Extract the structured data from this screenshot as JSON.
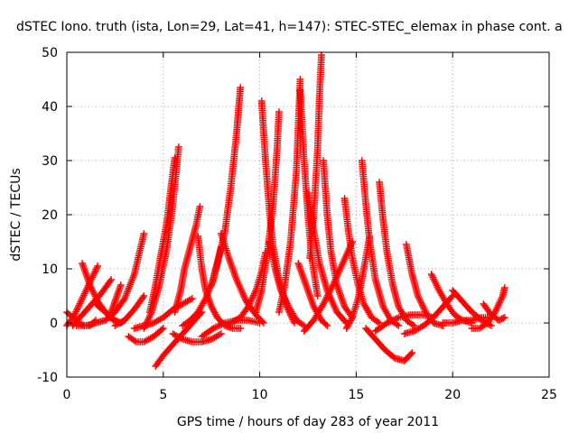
{
  "chart_data": {
    "type": "scatter",
    "title": "dSTEC Iono. truth (ista, Lon=29, Lat=41, h=147): STEC-STEC_elemax in phase cont. a",
    "xlabel": "GPS time / hours of day 283 of year 2011",
    "ylabel": "dSTEC  / TECUs",
    "xlim": [
      0,
      25
    ],
    "ylim": [
      -10,
      50
    ],
    "x_ticks": [
      "0",
      "5",
      "10",
      "15",
      "20",
      "25"
    ],
    "y_ticks": [
      "-10",
      "0",
      "10",
      "20",
      "30",
      "40",
      "50"
    ],
    "grid": true,
    "legend": "none",
    "marker": "+",
    "color": "#ff0000",
    "series": [
      {
        "x": [
          0.0,
          0.3,
          0.6,
          0.9,
          1.2,
          1.5
        ],
        "y": [
          2.0,
          1.0,
          0.0,
          -0.5,
          -0.5,
          0.5
        ]
      },
      {
        "x": [
          0.0,
          0.4,
          0.8,
          1.2,
          1.6
        ],
        "y": [
          -0.5,
          1.5,
          4.5,
          7.5,
          10.5
        ]
      },
      {
        "x": [
          0.8,
          1.2,
          1.6,
          2.0,
          2.4
        ],
        "y": [
          11.0,
          7.0,
          4.0,
          2.0,
          0.5
        ]
      },
      {
        "x": [
          0.3,
          0.8,
          1.3,
          1.8,
          2.3
        ],
        "y": [
          -0.5,
          1.5,
          3.5,
          5.5,
          8.0
        ]
      },
      {
        "x": [
          0.5,
          1.0,
          1.5,
          2.0,
          2.5,
          3.0,
          3.5,
          4.0
        ],
        "y": [
          -0.5,
          -0.5,
          0.0,
          0.5,
          2.0,
          4.5,
          9.0,
          16.5
        ]
      },
      {
        "x": [
          1.5,
          2.0,
          2.5,
          2.8,
          3.0
        ],
        "y": [
          3.5,
          2.0,
          0.5,
          0.0,
          0.5
        ]
      },
      {
        "x": [
          2.2,
          2.5,
          2.8
        ],
        "y": [
          1.0,
          4.0,
          7.0
        ]
      },
      {
        "x": [
          2.5,
          3.0,
          3.5,
          4.0
        ],
        "y": [
          -0.5,
          0.5,
          2.5,
          5.0
        ]
      },
      {
        "x": [
          3.2,
          3.6,
          4.0,
          4.5,
          5.0
        ],
        "y": [
          -2.5,
          -3.5,
          -3.5,
          -2.5,
          -1.0
        ]
      },
      {
        "x": [
          3.5,
          4.0,
          4.5,
          5.0,
          5.5,
          6.0,
          6.5
        ],
        "y": [
          -1.0,
          -0.5,
          0.0,
          1.0,
          2.5,
          3.5,
          4.5
        ]
      },
      {
        "x": [
          4.3,
          4.6,
          4.9,
          5.2,
          5.4,
          5.6
        ],
        "y": [
          2.0,
          7.0,
          13.0,
          19.0,
          25.0,
          30.5
        ]
      },
      {
        "x": [
          4.0,
          4.4,
          4.8,
          5.2,
          5.5,
          5.8
        ],
        "y": [
          -1.0,
          2.0,
          7.0,
          14.0,
          22.0,
          32.5
        ]
      },
      {
        "x": [
          4.6,
          5.0,
          5.5,
          6.0,
          6.5,
          7.0
        ],
        "y": [
          -8.0,
          -6.0,
          -4.0,
          -2.0,
          0.0,
          2.0
        ]
      },
      {
        "x": [
          5.5,
          6.0,
          6.5,
          7.0,
          7.5,
          8.0
        ],
        "y": [
          -2.0,
          -3.0,
          -3.5,
          -3.5,
          -3.0,
          -2.0
        ]
      },
      {
        "x": [
          5.6,
          5.9,
          6.1,
          6.4,
          6.7,
          6.9
        ],
        "y": [
          2.0,
          6.0,
          10.0,
          14.0,
          18.0,
          21.5
        ]
      },
      {
        "x": [
          6.0,
          6.4,
          6.8,
          7.2,
          7.6,
          8.0
        ],
        "y": [
          -0.5,
          0.5,
          2.0,
          4.5,
          8.0,
          14.0
        ]
      },
      {
        "x": [
          6.8,
          7.0,
          7.2,
          7.5,
          7.8,
          8.2,
          8.6,
          9.0
        ],
        "y": [
          16.0,
          10.0,
          6.0,
          3.0,
          1.0,
          -0.5,
          -1.0,
          -1.0
        ]
      },
      {
        "x": [
          7.5,
          7.8,
          8.2,
          8.5,
          8.8,
          9.0
        ],
        "y": [
          7.0,
          11.0,
          17.0,
          25.0,
          35.0,
          43.5
        ]
      },
      {
        "x": [
          8.0,
          8.4,
          8.8,
          9.3,
          9.8,
          10.2
        ],
        "y": [
          16.5,
          12.0,
          8.0,
          4.0,
          1.5,
          0.0
        ]
      },
      {
        "x": [
          7.0,
          7.6,
          8.2,
          8.8,
          9.4,
          10.0
        ],
        "y": [
          -2.5,
          -1.0,
          0.0,
          0.5,
          0.5,
          0.0
        ]
      },
      {
        "x": [
          8.5,
          9.0,
          9.4,
          9.8,
          10.1,
          10.3
        ],
        "y": [
          0.0,
          1.0,
          3.0,
          6.0,
          9.5,
          13.0
        ]
      },
      {
        "x": [
          10.1,
          10.3,
          10.5,
          10.7,
          11.0,
          11.4,
          11.8
        ],
        "y": [
          41.0,
          30.0,
          21.0,
          14.0,
          8.0,
          3.0,
          0.0
        ]
      },
      {
        "x": [
          9.8,
          10.1,
          10.4,
          10.7,
          10.9,
          11.0
        ],
        "y": [
          2.0,
          6.0,
          13.0,
          22.0,
          32.0,
          39.0
        ]
      },
      {
        "x": [
          10.5,
          10.8,
          11.1,
          11.5,
          11.9,
          12.3
        ],
        "y": [
          15.0,
          10.0,
          6.0,
          3.0,
          0.5,
          -0.5
        ]
      },
      {
        "x": [
          11.0,
          11.3,
          11.6,
          11.9,
          12.1
        ],
        "y": [
          2.0,
          7.0,
          15.0,
          28.0,
          45.0
        ]
      },
      {
        "x": [
          12.1,
          12.3,
          12.5,
          12.7,
          13.0
        ],
        "y": [
          43.0,
          30.0,
          20.0,
          12.0,
          5.0
        ]
      },
      {
        "x": [
          12.5,
          12.8,
          13.1,
          13.5,
          14.0,
          14.5
        ],
        "y": [
          24.0,
          17.0,
          11.0,
          6.0,
          2.0,
          0.0
        ]
      },
      {
        "x": [
          12.0,
          12.4,
          12.8,
          13.2,
          13.5
        ],
        "y": [
          11.0,
          7.0,
          3.0,
          0.5,
          -0.5
        ]
      },
      {
        "x": [
          12.6,
          12.8,
          13.0,
          13.1,
          13.2
        ],
        "y": [
          12.0,
          20.0,
          32.0,
          42.0,
          49.5
        ]
      },
      {
        "x": [
          13.3,
          13.5,
          13.7,
          14.0,
          14.4,
          14.8
        ],
        "y": [
          30.0,
          20.0,
          13.0,
          7.0,
          3.0,
          1.0
        ]
      },
      {
        "x": [
          12.3,
          12.8,
          13.3,
          13.8,
          14.3,
          14.8
        ],
        "y": [
          -1.5,
          0.5,
          3.5,
          7.0,
          11.0,
          15.0
        ]
      },
      {
        "x": [
          14.4,
          14.6,
          14.8,
          15.1,
          15.4,
          15.8,
          16.2
        ],
        "y": [
          23.0,
          17.0,
          12.0,
          7.0,
          3.5,
          1.0,
          0.0
        ]
      },
      {
        "x": [
          14.5,
          14.8,
          15.1,
          15.4,
          15.7
        ],
        "y": [
          -1.0,
          1.0,
          4.5,
          10.0,
          16.0
        ]
      },
      {
        "x": [
          15.3,
          15.5,
          15.7,
          16.0,
          16.4,
          16.8,
          17.2
        ],
        "y": [
          30.0,
          22.0,
          15.0,
          8.0,
          3.0,
          0.5,
          -0.5
        ]
      },
      {
        "x": [
          16.2,
          16.4,
          16.6,
          16.9,
          17.2,
          17.6,
          18.0
        ],
        "y": [
          26.0,
          19.0,
          13.0,
          7.0,
          3.0,
          0.5,
          -0.5
        ]
      },
      {
        "x": [
          15.5,
          16.0,
          16.5,
          17.0,
          17.5,
          17.9
        ],
        "y": [
          -1.0,
          -3.0,
          -5.0,
          -6.5,
          -7.0,
          -5.5
        ]
      },
      {
        "x": [
          17.6,
          17.9,
          18.2,
          18.6,
          19.0,
          19.5
        ],
        "y": [
          14.5,
          9.0,
          5.0,
          2.0,
          0.0,
          -0.5
        ]
      },
      {
        "x": [
          16.0,
          16.6,
          17.2,
          17.8,
          18.4,
          19.0
        ],
        "y": [
          -1.5,
          0.0,
          1.0,
          1.5,
          1.5,
          1.0
        ]
      },
      {
        "x": [
          18.9,
          19.3,
          19.7,
          20.1,
          20.5,
          21.0
        ],
        "y": [
          9.0,
          6.0,
          3.5,
          1.5,
          0.5,
          0.0
        ]
      },
      {
        "x": [
          17.5,
          18.0,
          18.5,
          19.0,
          19.5,
          20.0
        ],
        "y": [
          -2.0,
          -1.5,
          -0.5,
          1.0,
          3.0,
          5.0
        ]
      },
      {
        "x": [
          20.0,
          20.5,
          21.0,
          21.5,
          22.0
        ],
        "y": [
          6.0,
          4.0,
          2.0,
          0.5,
          -0.5
        ]
      },
      {
        "x": [
          19.5,
          20.0,
          20.5,
          21.0,
          21.5,
          22.0
        ],
        "y": [
          0.0,
          0.0,
          0.5,
          0.5,
          1.0,
          1.0
        ]
      },
      {
        "x": [
          21.0,
          21.4,
          21.8,
          22.2,
          22.6,
          22.7
        ],
        "y": [
          -1.0,
          -1.0,
          0.0,
          2.0,
          5.0,
          6.5
        ]
      },
      {
        "x": [
          21.6,
          22.0,
          22.4,
          22.7
        ],
        "y": [
          3.5,
          1.5,
          0.5,
          1.0
        ]
      }
    ]
  }
}
